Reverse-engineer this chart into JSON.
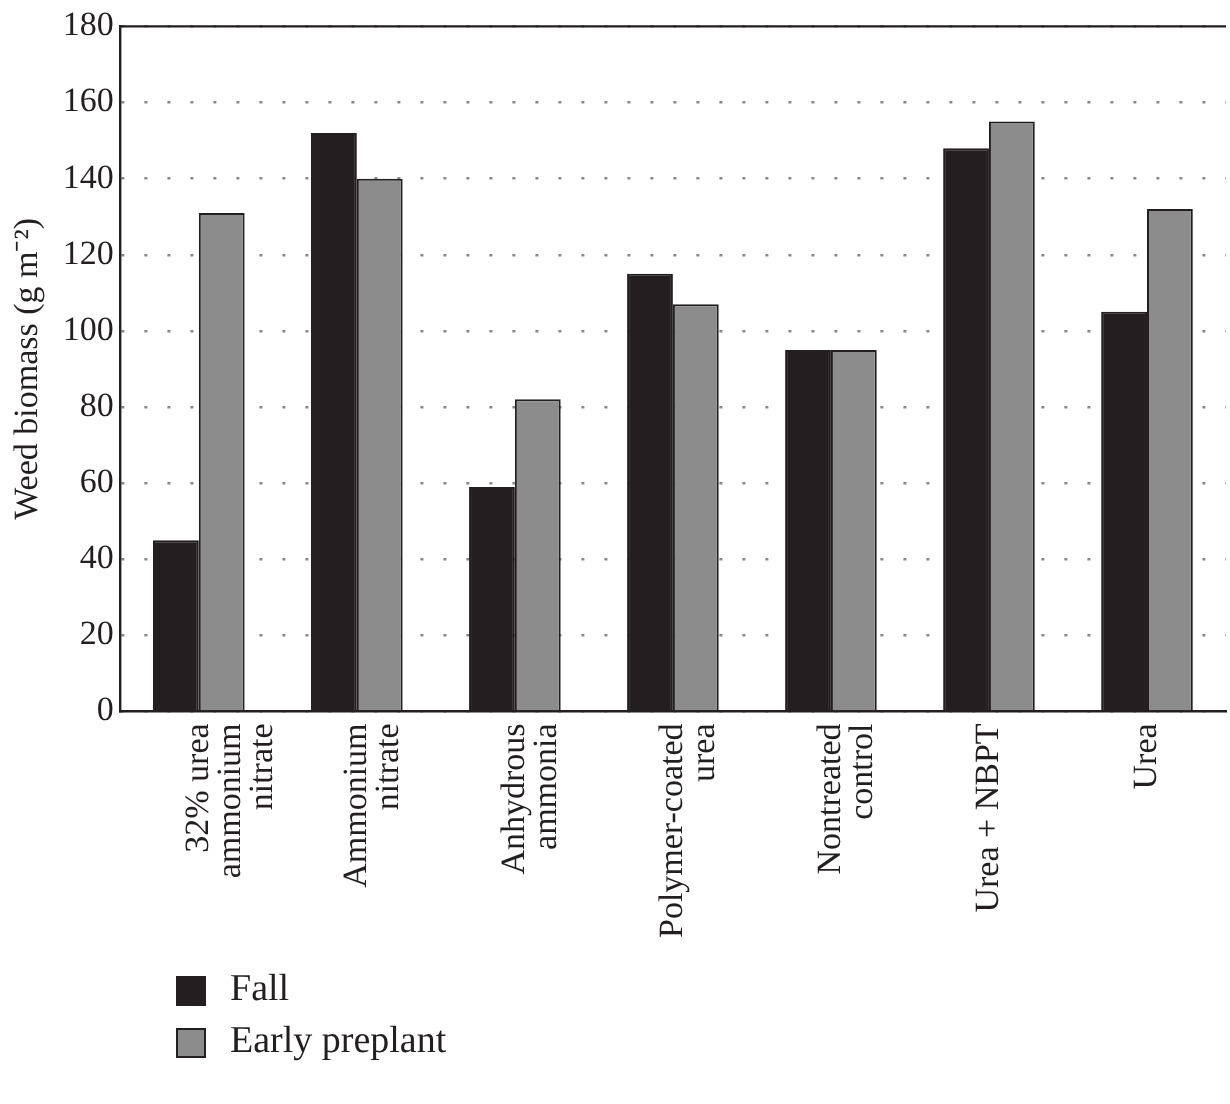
{
  "chart_data": {
    "type": "bar",
    "ylabel": "Weed biomass (g m⁻²)",
    "categories": [
      "32% urea\nammonium\nnitrate",
      "Ammonium\nnitrate",
      "Anhydrous\nammonia",
      "Polymer-coated\nurea",
      "Nontreated\ncontrol",
      "Urea + NBPT",
      "Urea"
    ],
    "series": [
      {
        "name": "Fall",
        "color": "#231f20",
        "values": [
          45,
          152,
          59,
          115,
          95,
          148,
          105
        ]
      },
      {
        "name": "Early preplant",
        "color": "#8c8c8c",
        "values": [
          131,
          140,
          82,
          107,
          95,
          155,
          132
        ]
      }
    ],
    "ylim": [
      0,
      180
    ],
    "yticks": [
      0,
      20,
      40,
      60,
      80,
      100,
      120,
      140,
      160,
      180
    ],
    "grid": "y",
    "legend": "bottom left"
  }
}
